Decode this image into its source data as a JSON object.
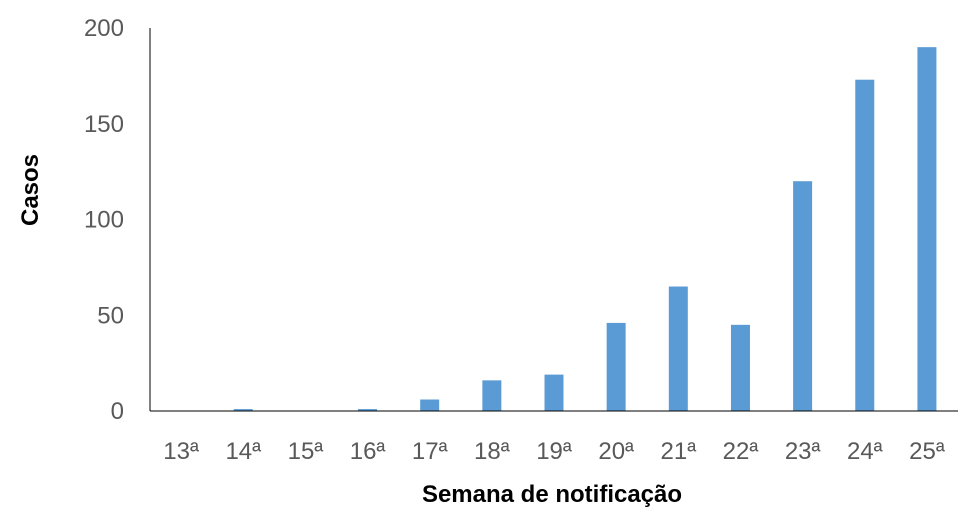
{
  "chart_data": {
    "type": "bar",
    "title": "",
    "xlabel": "Semana de notificação",
    "ylabel": "Casos",
    "categories": [
      "13ª",
      "14ª",
      "15ª",
      "16ª",
      "17ª",
      "18ª",
      "19ª",
      "20ª",
      "21ª",
      "22ª",
      "23ª",
      "24ª",
      "25ª"
    ],
    "values": [
      0,
      1,
      0,
      1,
      6,
      16,
      19,
      46,
      65,
      45,
      120,
      173,
      190
    ],
    "ylim": [
      0,
      200
    ],
    "yticks": [
      "0",
      "50",
      "100",
      "150",
      "200"
    ],
    "grid": false,
    "legend": "none",
    "bar_color": "#5b9bd5"
  }
}
